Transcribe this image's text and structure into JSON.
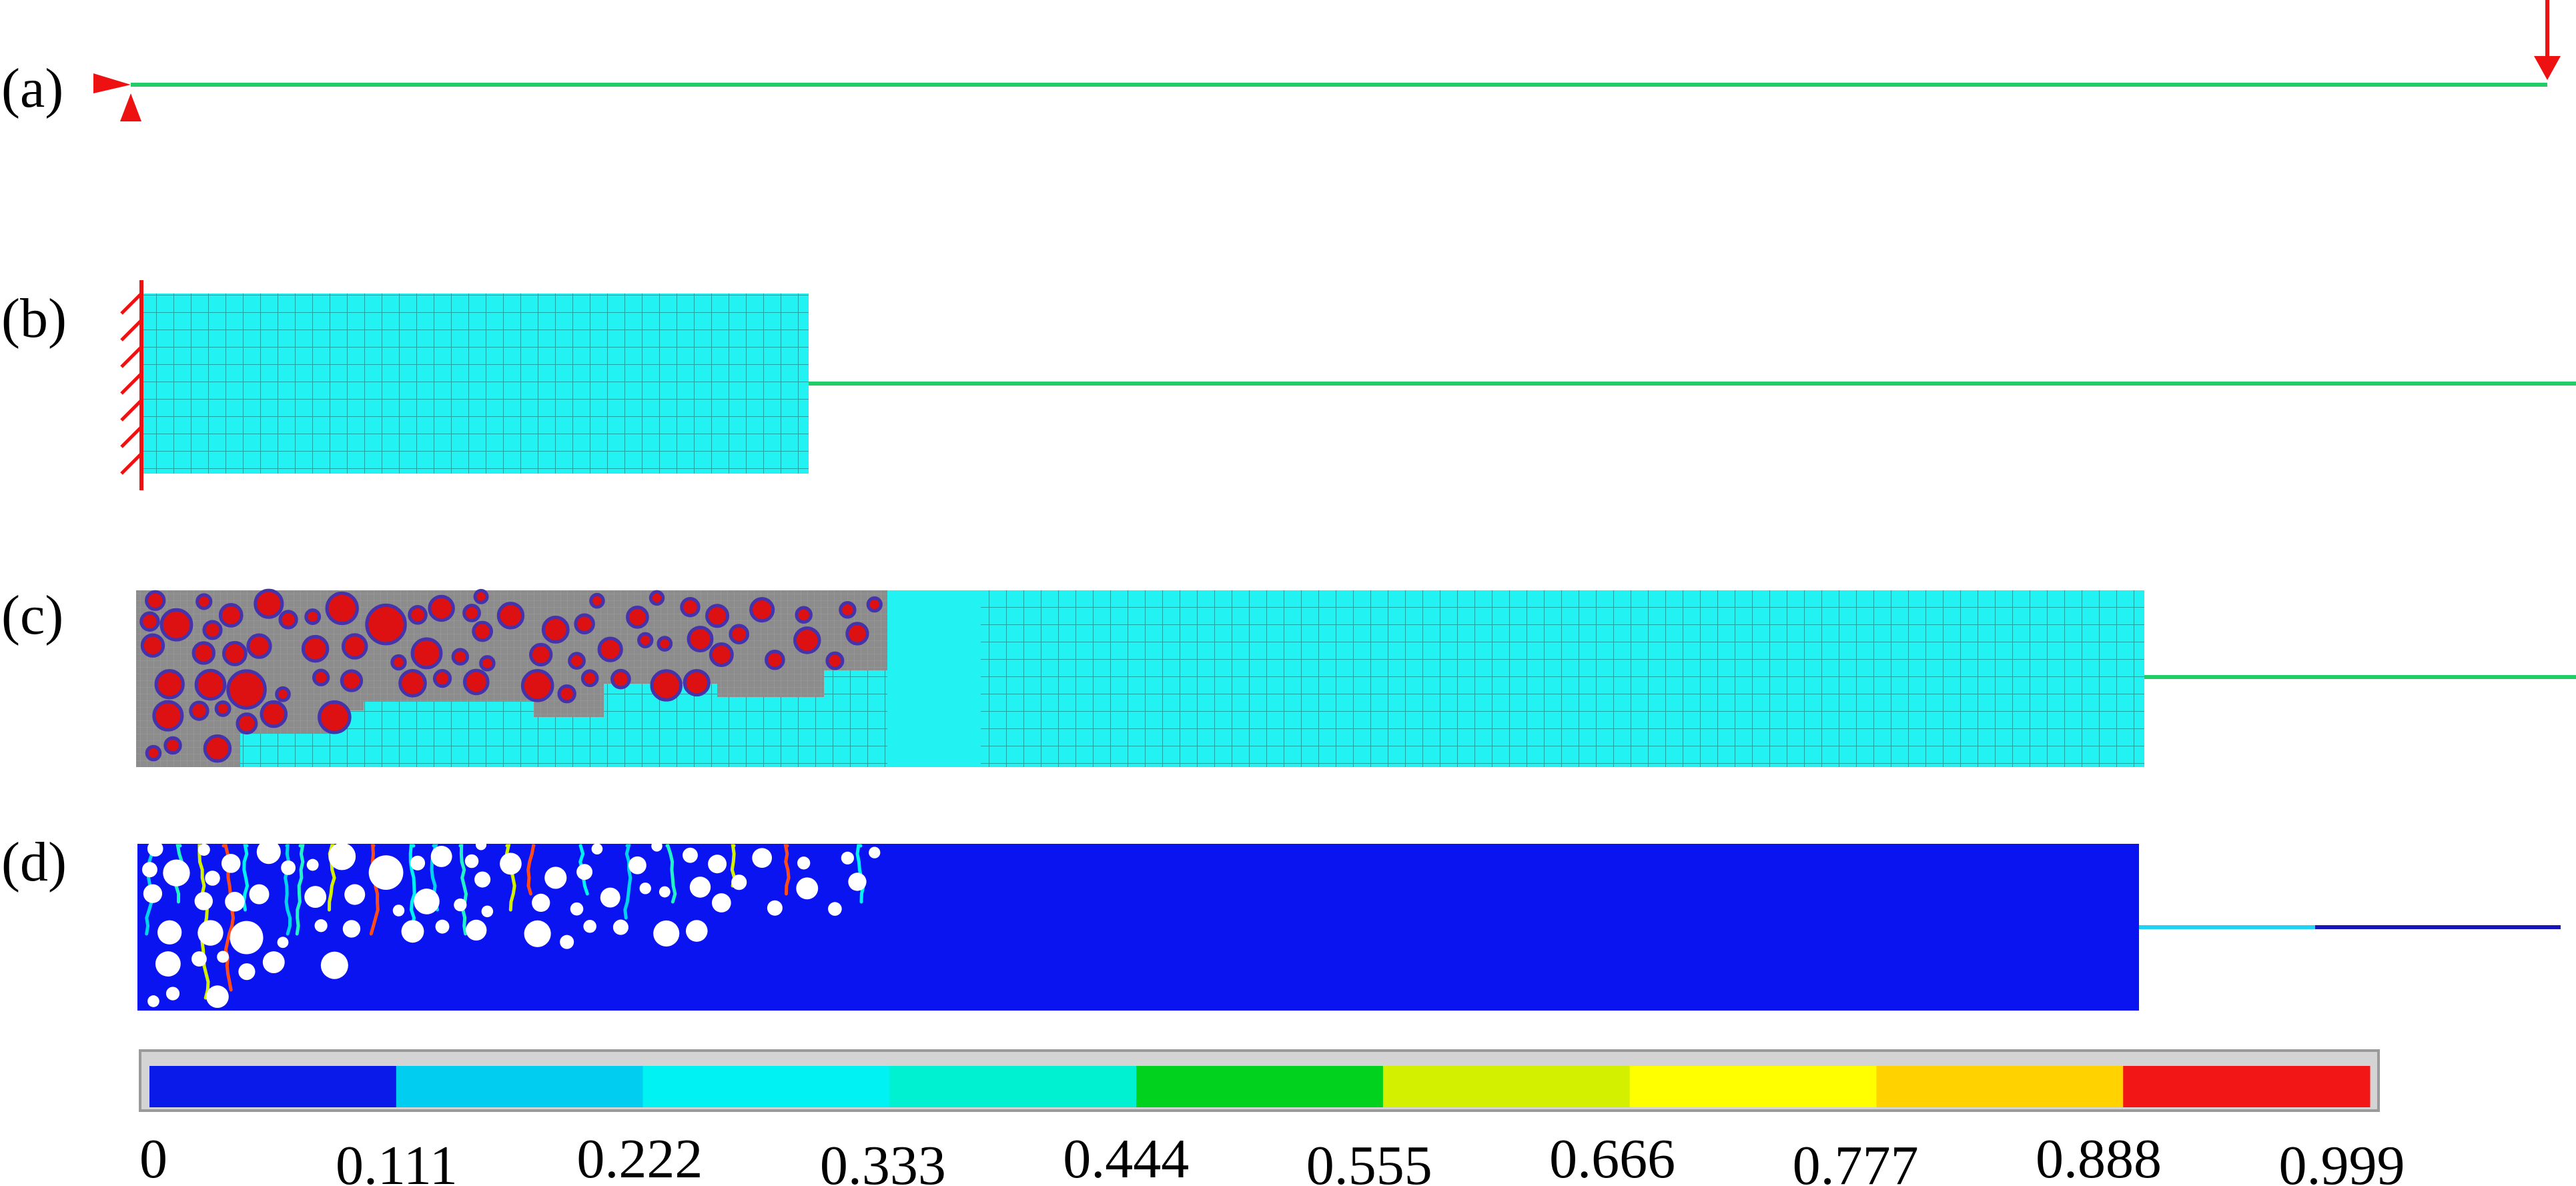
{
  "panels": {
    "a": {
      "label": "(a)"
    },
    "b": {
      "label": "(b)"
    },
    "c": {
      "label": "(c)"
    },
    "d": {
      "label": "(d)"
    }
  },
  "colorbar": {
    "colors": [
      "#0a1ae8",
      "#00cdf0",
      "#00f2f2",
      "#00f0d2",
      "#00d21e",
      "#d2f000",
      "#ffff00",
      "#ffd200",
      "#f21616"
    ],
    "tick_labels": [
      "0",
      "0.111",
      "0.222",
      "0.333",
      "0.444",
      "0.555",
      "0.666",
      "0.777",
      "0.888",
      "0.999"
    ]
  },
  "colors": {
    "beam": "#22cc66",
    "support": "#ee1111",
    "mesh_fill": "#22f2f2",
    "mesh_line": "#1aa4a4",
    "matrix_gray": "#8c8c8c",
    "aggregate_red": "#dd1111",
    "aggregate_rim": "#4433aa",
    "damage_blue": "#0a14f0"
  }
}
